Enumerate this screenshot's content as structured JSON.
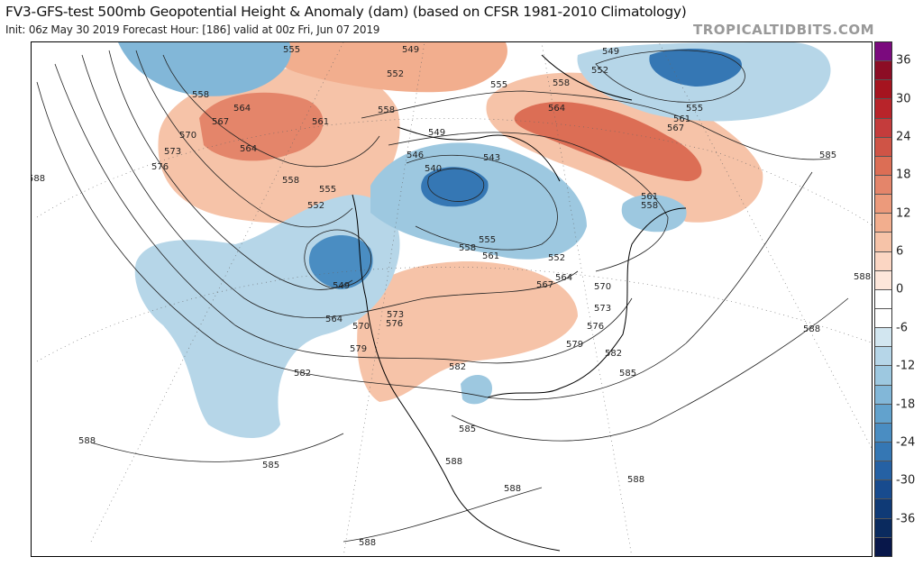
{
  "header": {
    "title": "FV3-GFS-test 500mb Geopotential Height & Anomaly (dam) (based on CFSR 1981-2010 Climatology)",
    "subtitle": "Init: 06z May 30 2019   Forecast Hour: [186]   valid at 00z Fri, Jun 07 2019",
    "brand": "TROPICALTIDBITS.COM"
  },
  "colorbar": {
    "ticks": [
      "36",
      "30",
      "24",
      "18",
      "12",
      "6",
      "0",
      "-6",
      "-12",
      "-18",
      "-24",
      "-30",
      "-36"
    ],
    "colors": [
      "#7b0a7e",
      "#8c0d25",
      "#a5141f",
      "#b8242a",
      "#c43c3c",
      "#cf5446",
      "#dc6e55",
      "#e4856a",
      "#ec9a7b",
      "#f2ae8e",
      "#f6c3a8",
      "#fbd6c3",
      "#fde6da",
      "#ffffff",
      "#ffffff",
      "#d2e6f0",
      "#b6d6e8",
      "#9dc8e0",
      "#82b7d8",
      "#62a2cd",
      "#4a8dc2",
      "#3577b4",
      "#2561a4",
      "#184b8e",
      "#0f3a76",
      "#0a2a5e",
      "#08174a"
    ]
  },
  "contour_labels": [
    "555",
    "549",
    "552",
    "558",
    "564",
    "567",
    "561",
    "558",
    "570",
    "573",
    "564",
    "576",
    "558",
    "555",
    "552",
    "549",
    "546",
    "540",
    "543",
    "549",
    "564",
    "570",
    "573",
    "576",
    "579",
    "582",
    "582",
    "585",
    "588",
    "588",
    "585",
    "588",
    "588",
    "588",
    "588",
    "588",
    "588",
    "585",
    "585",
    "582",
    "579",
    "576",
    "573",
    "570",
    "567",
    "564",
    "561",
    "558",
    "555",
    "552",
    "561",
    "558",
    "567",
    "561",
    "555",
    "564",
    "558",
    "555",
    "552",
    "549"
  ]
}
